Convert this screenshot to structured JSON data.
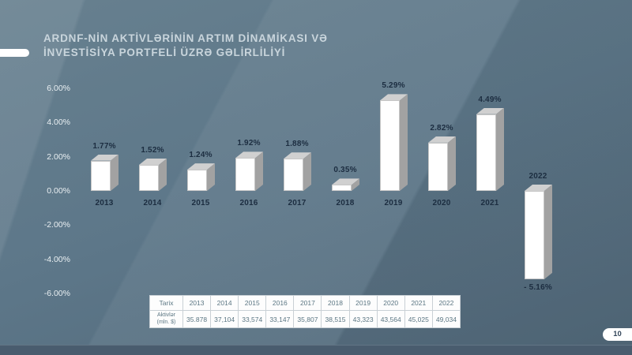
{
  "slide": {
    "title_line1": "ARDNF-NİN AKTİVLƏRİNİN ARTIM DİNAMİKASI VƏ",
    "title_line2": "İNVESTİSİYA PORTFELİ ÜZRƏ GƏLİRLİLİYİ",
    "page_number": "10"
  },
  "chart_data": {
    "type": "bar",
    "title": "ARDNF-nin aktivlərinin artım dinamikası və investisiya portfeli üzrə gəlirliliyi",
    "categories": [
      "2013",
      "2014",
      "2015",
      "2016",
      "2017",
      "2018",
      "2019",
      "2020",
      "2021",
      "2022"
    ],
    "values": [
      1.77,
      1.52,
      1.24,
      1.92,
      1.88,
      0.35,
      5.29,
      2.82,
      4.49,
      -5.16
    ],
    "labels": [
      "1.77%",
      "1.52%",
      "1.24%",
      "1.92%",
      "1.88%",
      "0.35%",
      "5.29%",
      "2.82%",
      "4.49%",
      "- 5.16%"
    ],
    "xlabel": "",
    "ylabel": "",
    "ylim": [
      -6,
      6
    ],
    "grid": false,
    "legend": "none",
    "axis_ticks": [
      {
        "label": "6.00%",
        "value": 6
      },
      {
        "label": "4.00%",
        "value": 4
      },
      {
        "label": "2.00%",
        "value": 2
      },
      {
        "label": "0.00%",
        "value": 0
      },
      {
        "label": "-2.00%",
        "value": -2
      },
      {
        "label": "-4.00%",
        "value": -4
      },
      {
        "label": "-6.00%",
        "value": -6
      }
    ],
    "bar_style": {
      "front": "#ffffff",
      "top": "#d0d0d0",
      "side": "#a2a2a2",
      "label_color": "#1c2d40"
    }
  },
  "table": {
    "header": [
      "Tarix",
      "2013",
      "2014",
      "2015",
      "2016",
      "2017",
      "2018",
      "2019",
      "2020",
      "2021",
      "2022"
    ],
    "row_label": "Aktivlər",
    "row_sublabel": "(mln. $)",
    "values": [
      "35.878",
      "37,104",
      "33,574",
      "33,147",
      "35,807",
      "38,515",
      "43,323",
      "43,564",
      "45,025",
      "49,034"
    ]
  },
  "colors": {
    "background": "#5d7789",
    "footer_band": "#495c6e",
    "title_text": "#c9d5dc",
    "axis_text": "#e9eff2",
    "data_label_text": "#1c2d40",
    "table_text": "#5b7683"
  }
}
